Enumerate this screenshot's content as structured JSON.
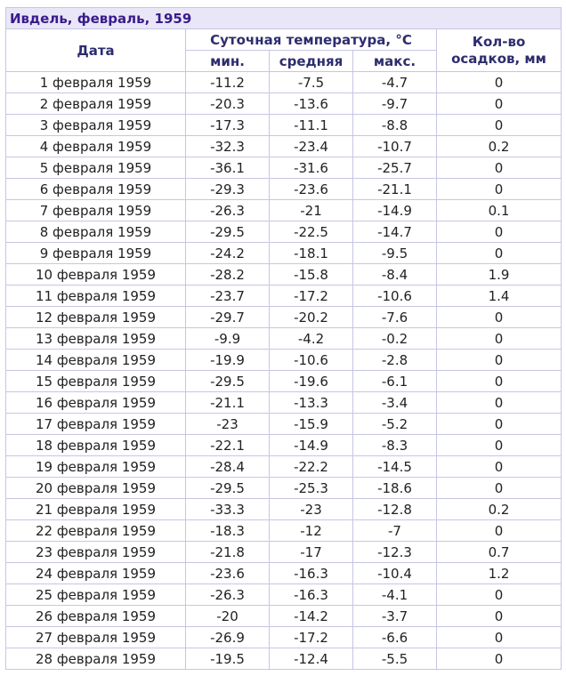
{
  "table": {
    "title": "Ивдель, февраль, 1959",
    "header": {
      "date": "Дата",
      "temperature": "Суточная температура, °C",
      "min": "мин.",
      "avg": "средняя",
      "max": "макс.",
      "precipitation": "Кол-во осадков, мм"
    },
    "rows": [
      [
        "1 февраля 1959",
        "-11.2",
        "-7.5",
        "-4.7",
        "0"
      ],
      [
        "2 февраля 1959",
        "-20.3",
        "-13.6",
        "-9.7",
        "0"
      ],
      [
        "3 февраля 1959",
        "-17.3",
        "-11.1",
        "-8.8",
        "0"
      ],
      [
        "4 февраля 1959",
        "-32.3",
        "-23.4",
        "-10.7",
        "0.2"
      ],
      [
        "5 февраля 1959",
        "-36.1",
        "-31.6",
        "-25.7",
        "0"
      ],
      [
        "6 февраля 1959",
        "-29.3",
        "-23.6",
        "-21.1",
        "0"
      ],
      [
        "7 февраля 1959",
        "-26.3",
        "-21",
        "-14.9",
        "0.1"
      ],
      [
        "8 февраля 1959",
        "-29.5",
        "-22.5",
        "-14.7",
        "0"
      ],
      [
        "9 февраля 1959",
        "-24.2",
        "-18.1",
        "-9.5",
        "0"
      ],
      [
        "10 февраля 1959",
        "-28.2",
        "-15.8",
        "-8.4",
        "1.9"
      ],
      [
        "11 февраля 1959",
        "-23.7",
        "-17.2",
        "-10.6",
        "1.4"
      ],
      [
        "12 февраля 1959",
        "-29.7",
        "-20.2",
        "-7.6",
        "0"
      ],
      [
        "13 февраля 1959",
        "-9.9",
        "-4.2",
        "-0.2",
        "0"
      ],
      [
        "14 февраля 1959",
        "-19.9",
        "-10.6",
        "-2.8",
        "0"
      ],
      [
        "15 февраля 1959",
        "-29.5",
        "-19.6",
        "-6.1",
        "0"
      ],
      [
        "16 февраля 1959",
        "-21.1",
        "-13.3",
        "-3.4",
        "0"
      ],
      [
        "17 февраля 1959",
        "-23",
        "-15.9",
        "-5.2",
        "0"
      ],
      [
        "18 февраля 1959",
        "-22.1",
        "-14.9",
        "-8.3",
        "0"
      ],
      [
        "19 февраля 1959",
        "-28.4",
        "-22.2",
        "-14.5",
        "0"
      ],
      [
        "20 февраля 1959",
        "-29.5",
        "-25.3",
        "-18.6",
        "0"
      ],
      [
        "21 февраля 1959",
        "-33.3",
        "-23",
        "-12.8",
        "0.2"
      ],
      [
        "22 февраля 1959",
        "-18.3",
        "-12",
        "-7",
        "0"
      ],
      [
        "23 февраля 1959",
        "-21.8",
        "-17",
        "-12.3",
        "0.7"
      ],
      [
        "24 февраля 1959",
        "-23.6",
        "-16.3",
        "-10.4",
        "1.2"
      ],
      [
        "25 февраля 1959",
        "-26.3",
        "-16.3",
        "-4.1",
        "0"
      ],
      [
        "26 февраля 1959",
        "-20",
        "-14.2",
        "-3.7",
        "0"
      ],
      [
        "27 февраля 1959",
        "-26.9",
        "-17.2",
        "-6.6",
        "0"
      ],
      [
        "28 февраля 1959",
        "-19.5",
        "-12.4",
        "-5.5",
        "0"
      ]
    ]
  }
}
